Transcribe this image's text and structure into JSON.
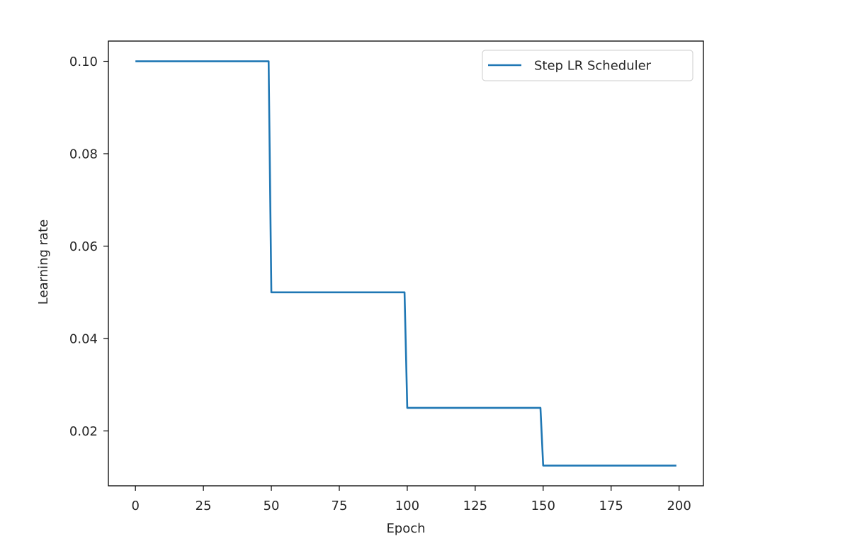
{
  "chart_data": {
    "type": "line",
    "title": "",
    "xlabel": "Epoch",
    "ylabel": "Learning rate",
    "xlim": [
      -9.95,
      208.95
    ],
    "ylim": [
      0.008125,
      0.104375
    ],
    "x_ticks": [
      0,
      25,
      50,
      75,
      100,
      125,
      150,
      175,
      200
    ],
    "x_tick_labels": [
      "0",
      "25",
      "50",
      "75",
      "100",
      "125",
      "150",
      "175",
      "200"
    ],
    "y_ticks": [
      0.02,
      0.04,
      0.06,
      0.08,
      0.1
    ],
    "y_tick_labels": [
      "0.02",
      "0.04",
      "0.06",
      "0.08",
      "0.10"
    ],
    "grid": false,
    "legend": {
      "placement": "top-right"
    },
    "series": [
      {
        "name": "Step LR Scheduler",
        "color": "#1f77b4",
        "x": [
          0,
          49,
          50,
          99,
          100,
          149,
          150,
          199
        ],
        "y": [
          0.1,
          0.1,
          0.05,
          0.05,
          0.025,
          0.025,
          0.0125,
          0.0125
        ]
      }
    ]
  }
}
